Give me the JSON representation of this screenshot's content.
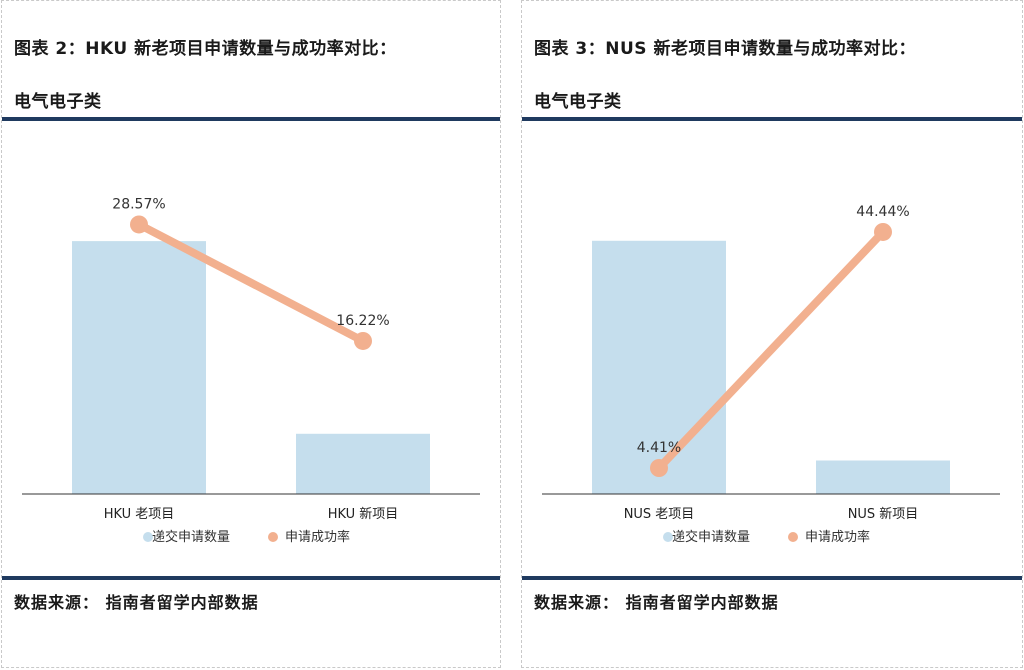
{
  "colors": {
    "bar": "#c5deed",
    "line": "#f2b08f",
    "axis": "#333333",
    "rule": "#1f3a5f"
  },
  "panels": [
    {
      "title_line1": "图表 2：HKU 新老项目申请数量与成功率对比：",
      "title_line2": "电气电子类",
      "source": "数据来源：  指南者留学内部数据"
    },
    {
      "title_line1": "图表 3：NUS 新老项目申请数量与成功率对比：",
      "title_line2": "电气电子类",
      "source": "数据来源：  指南者留学内部数据"
    }
  ],
  "chart_data": [
    {
      "type": "bar",
      "categories": [
        "HKU 老项目",
        "HKU 新项目"
      ],
      "series": [
        {
          "name": "递交申请数量",
          "type": "bar",
          "values": [
            42,
            10
          ]
        },
        {
          "name": "申请成功率",
          "type": "line",
          "values": [
            28.57,
            16.22
          ],
          "labels": [
            "28.57%",
            "16.22%"
          ]
        }
      ],
      "bar_max": 47,
      "line_range": [
        0,
        30
      ],
      "legend": "bottom",
      "grid": false
    },
    {
      "type": "bar",
      "categories": [
        "NUS 老项目",
        "NUS 新项目"
      ],
      "series": [
        {
          "name": "递交申请数量",
          "type": "bar",
          "values": [
            68,
            9
          ]
        },
        {
          "name": "申请成功率",
          "type": "line",
          "values": [
            4.41,
            44.44
          ],
          "labels": [
            "4.41%",
            "44.44%"
          ]
        }
      ],
      "bar_max": 76,
      "line_range": [
        0,
        48
      ],
      "legend": "bottom",
      "grid": false
    }
  ]
}
